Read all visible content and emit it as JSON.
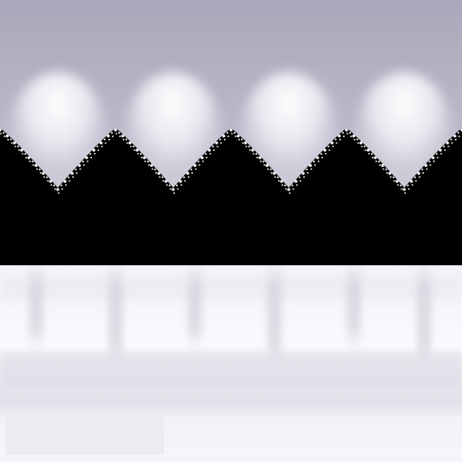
{
  "palette": {
    "sky_top": "#a7a6b8",
    "sky_mid": "#d2d1dd",
    "sky_glow": "#ffffff",
    "silhouette": "#000000",
    "lace_edge": "#ffffff",
    "band_light": "#f8f6fd",
    "band_smudge": "#c9c7d3",
    "band_gray": "#e6e4ec",
    "swatch": "#ecebf1"
  },
  "scallop_count": 4,
  "icons": {
    "texture": "lace-scallop-texture-icon"
  }
}
